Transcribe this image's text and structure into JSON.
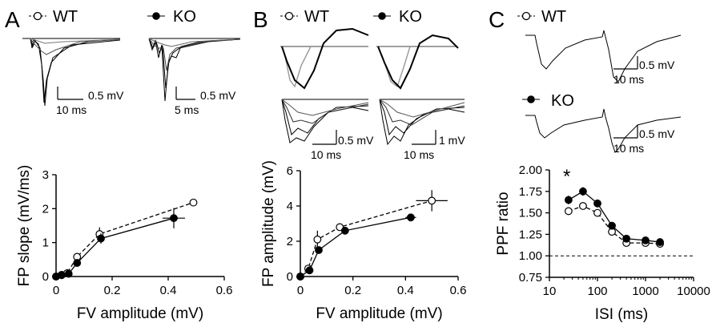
{
  "panels": {
    "a": {
      "letter": "A",
      "legend_wt": "WT",
      "legend_ko": "KO",
      "wt_scale_v": "0.5 mV",
      "wt_scale_t": "10 ms",
      "ko_scale_v": "0.5 mV",
      "ko_scale_t": "5 ms"
    },
    "b": {
      "letter": "B",
      "legend_wt": "WT",
      "legend_ko": "KO",
      "wt_scale_v": "0.5 mV",
      "wt_scale_t": "10 ms",
      "ko_scale_v": "1 mV",
      "ko_scale_t": "10 ms"
    },
    "c": {
      "letter": "C",
      "legend_wt": "WT",
      "legend_ko": "KO",
      "wt_scale_v": "0.5 mV",
      "wt_scale_t": "10 ms",
      "ko_scale_v": "0.5 mV",
      "ko_scale_t": "10 ms",
      "asterisk": "*"
    }
  },
  "chart_data": [
    {
      "type": "line",
      "xlabel": "FV amplitude (mV)",
      "ylabel": "FP slope (mV/ms)",
      "xlim": [
        0,
        0.6
      ],
      "ylim": [
        0,
        3
      ],
      "xticks": [
        "0",
        "0.2",
        "0.4",
        "0.6"
      ],
      "yticks": [
        "0",
        "1",
        "2",
        "3"
      ],
      "series": [
        {
          "name": "WT",
          "style": "dashed-open",
          "x": [
            0.0,
            0.02,
            0.04,
            0.075,
            0.155,
            0.49
          ],
          "y": [
            0.0,
            0.05,
            0.1,
            0.58,
            1.25,
            2.18
          ],
          "err": [
            0,
            0,
            0,
            0.05,
            0.2,
            0
          ]
        },
        {
          "name": "KO",
          "style": "solid-filled",
          "x": [
            0.0,
            0.02,
            0.045,
            0.075,
            0.16,
            0.42
          ],
          "y": [
            0.0,
            0.04,
            0.08,
            0.4,
            1.12,
            1.72
          ],
          "err": [
            0,
            0,
            0,
            0.05,
            0.15,
            0.3
          ],
          "xerr": [
            0,
            0,
            0,
            0,
            0.01,
            0.04
          ]
        }
      ]
    },
    {
      "type": "line",
      "xlabel": "FV amplitude (mV)",
      "ylabel": "FP amplitude (mV)",
      "xlim": [
        0,
        0.6
      ],
      "ylim": [
        0,
        6
      ],
      "xticks": [
        "0",
        "0.2",
        "0.4",
        "0.6"
      ],
      "yticks": [
        "0",
        "2",
        "4",
        "6"
      ],
      "series": [
        {
          "name": "WT",
          "style": "dashed-open",
          "x": [
            0.0,
            0.03,
            0.065,
            0.15,
            0.5
          ],
          "y": [
            0.0,
            0.45,
            2.1,
            2.8,
            4.3
          ],
          "err": [
            0,
            0,
            0.5,
            0.1,
            0.6
          ],
          "xerr": [
            0,
            0,
            0,
            0.01,
            0.06
          ]
        },
        {
          "name": "KO",
          "style": "solid-filled",
          "x": [
            0.0,
            0.035,
            0.07,
            0.17,
            0.42
          ],
          "y": [
            0.0,
            0.35,
            1.5,
            2.6,
            3.35
          ],
          "err": [
            0,
            0,
            0.1,
            0.1,
            0.1
          ],
          "xerr": [
            0,
            0,
            0,
            0,
            0.02
          ]
        }
      ]
    },
    {
      "type": "line",
      "xlabel": "ISI (ms)",
      "ylabel": "PPF ratio",
      "xscale": "log",
      "xlim": [
        10,
        10000
      ],
      "ylim": [
        0.75,
        2.0
      ],
      "xticks": [
        "10",
        "100",
        "1000",
        "10000"
      ],
      "yticks": [
        "0.75",
        "1.00",
        "1.25",
        "1.50",
        "1.75",
        "2.00"
      ],
      "reference_line": {
        "y": 1.0,
        "style": "dashed"
      },
      "series": [
        {
          "name": "WT",
          "style": "dashed-open",
          "x": [
            25,
            50,
            100,
            200,
            400,
            1000,
            2000
          ],
          "y": [
            1.52,
            1.58,
            1.5,
            1.28,
            1.15,
            1.15,
            1.14
          ]
        },
        {
          "name": "KO",
          "style": "solid-filled",
          "x": [
            25,
            50,
            100,
            200,
            400,
            1000,
            2000
          ],
          "y": [
            1.65,
            1.75,
            1.61,
            1.35,
            1.2,
            1.18,
            1.16
          ],
          "err": [
            0.05,
            0.05,
            0.04,
            0.03,
            0.02,
            0.02,
            0.02
          ]
        }
      ]
    }
  ]
}
